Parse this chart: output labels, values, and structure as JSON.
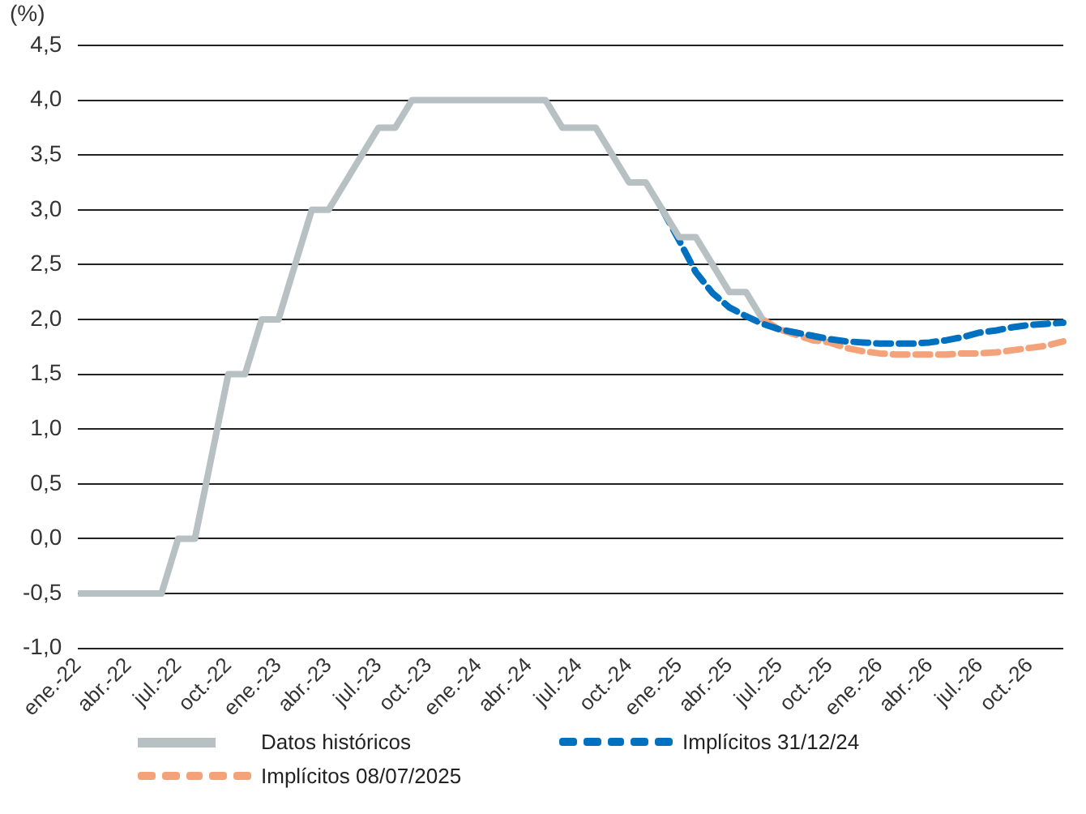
{
  "chart_data": {
    "type": "line",
    "ylabel": "(%)",
    "categories": [
      "ene.-22",
      null,
      null,
      "abr.-22",
      null,
      null,
      "jul.-22",
      null,
      null,
      "oct.-22",
      null,
      null,
      "ene.-23",
      null,
      null,
      "abr.-23",
      null,
      null,
      "jul.-23",
      null,
      null,
      "oct.-23",
      null,
      null,
      "ene.-24",
      null,
      null,
      "abr.-24",
      null,
      null,
      "jul.-24",
      null,
      null,
      "oct.-24",
      null,
      null,
      "ene.-25",
      null,
      null,
      "abr.-25",
      null,
      null,
      "jul.-25",
      null,
      null,
      "oct.-25",
      null,
      null,
      "ene.-26",
      null,
      null,
      "abr.-26",
      null,
      null,
      "jul.-26",
      null,
      null,
      "oct.-26",
      null,
      null
    ],
    "series": [
      {
        "name": "Datos históricos",
        "color": "#b7c1c4",
        "line_style": "solid",
        "values": [
          -0.5,
          -0.5,
          -0.5,
          -0.5,
          -0.5,
          -0.5,
          0,
          0,
          0.75,
          1.5,
          1.5,
          2.0,
          2.0,
          2.5,
          3.0,
          3.0,
          3.25,
          3.5,
          3.75,
          3.75,
          4.0,
          4.0,
          4.0,
          4.0,
          4.0,
          4.0,
          4.0,
          4.0,
          4.0,
          3.75,
          3.75,
          3.75,
          3.5,
          3.25,
          3.25,
          3.0,
          2.75,
          2.75,
          2.5,
          2.25,
          2.25,
          2.0,
          null,
          null,
          null,
          null,
          null,
          null,
          null,
          null,
          null,
          null,
          null,
          null,
          null,
          null,
          null,
          null,
          null,
          null
        ]
      },
      {
        "name": "Implícitos 31/12/24",
        "color": "#0070c0",
        "line_style": "dashed",
        "values": [
          null,
          null,
          null,
          null,
          null,
          null,
          null,
          null,
          null,
          null,
          null,
          null,
          null,
          null,
          null,
          null,
          null,
          null,
          null,
          null,
          null,
          null,
          null,
          null,
          null,
          null,
          null,
          null,
          null,
          null,
          null,
          null,
          null,
          null,
          null,
          3.0,
          2.72,
          2.43,
          2.24,
          2.11,
          2.03,
          1.96,
          1.91,
          1.88,
          1.85,
          1.82,
          1.8,
          1.79,
          1.78,
          1.78,
          1.78,
          1.79,
          1.81,
          1.84,
          1.88,
          1.9,
          1.93,
          1.95,
          1.96,
          1.97
        ]
      },
      {
        "name": "Implícitos 08/07/2025",
        "color": "#f4a27a",
        "line_style": "dashed",
        "values": [
          null,
          null,
          null,
          null,
          null,
          null,
          null,
          null,
          null,
          null,
          null,
          null,
          null,
          null,
          null,
          null,
          null,
          null,
          null,
          null,
          null,
          null,
          null,
          null,
          null,
          null,
          null,
          null,
          null,
          null,
          null,
          null,
          null,
          null,
          null,
          null,
          null,
          null,
          null,
          null,
          null,
          2.0,
          1.91,
          1.86,
          1.81,
          1.79,
          1.74,
          1.71,
          1.69,
          1.68,
          1.68,
          1.68,
          1.68,
          1.69,
          1.69,
          1.7,
          1.72,
          1.74,
          1.76,
          1.8
        ]
      }
    ],
    "ylim": [
      -1.0,
      4.5
    ],
    "yticks": [
      {
        "value": -1.0,
        "label": "-1,0"
      },
      {
        "value": -0.5,
        "label": "-0,5"
      },
      {
        "value": 0,
        "label": "0,0"
      },
      {
        "value": 0.5,
        "label": "0,5"
      },
      {
        "value": 1.0,
        "label": "1,0"
      },
      {
        "value": 1.5,
        "label": "1,5"
      },
      {
        "value": 2.0,
        "label": "2,0"
      },
      {
        "value": 2.5,
        "label": "2,5"
      },
      {
        "value": 3.0,
        "label": "3,0"
      },
      {
        "value": 3.5,
        "label": "3,5"
      },
      {
        "value": 4.0,
        "label": "4,0"
      },
      {
        "value": 4.5,
        "label": "4,5"
      }
    ],
    "grid": "y",
    "legend": "bottom",
    "marker": "none"
  }
}
